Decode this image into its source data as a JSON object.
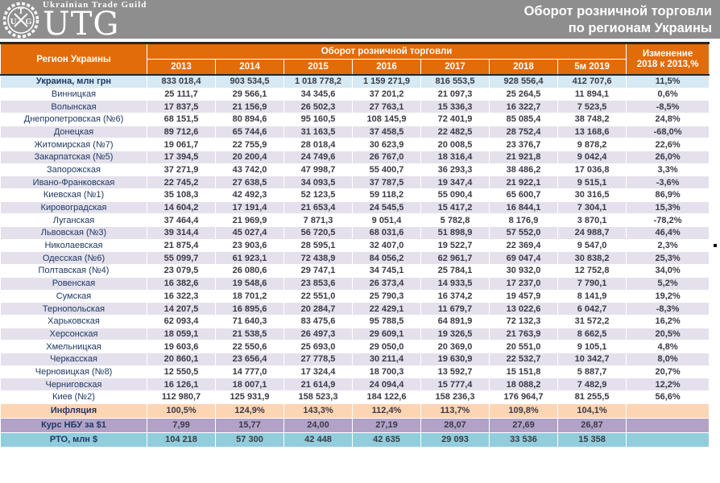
{
  "header": {
    "logo": {
      "top_text": "Ukrainian Trade Guild",
      "brand": "UTG",
      "seal_letters": {
        "left": "U",
        "top": "T",
        "right": "G"
      }
    },
    "title_line1": "Оборот розничной торговли",
    "title_line2": "по регионам Украины"
  },
  "colors": {
    "band_gray": "#8e8e8e",
    "header_orange": "#e26b0a",
    "ukraine_row_blue": "#d7e9f2",
    "stripe_lavender": "#e4e1ec",
    "inflation_peach": "#fcd5b4",
    "rate_purple": "#b2a2c7",
    "rto_teal": "#92cddc",
    "label_navy": "#1f3864"
  },
  "table": {
    "region_header": "Регион Украины",
    "group_header": "Оборот розничной торговли",
    "change_header_line1": "Изменение",
    "change_header_line2": "2018 к 2013,%",
    "year_headers": [
      "2013",
      "2014",
      "2015",
      "2016",
      "2017",
      "2018",
      "5м 2019"
    ],
    "ukraine_row": {
      "label": "Украина, млн грн",
      "values": [
        "833 018,4",
        "903 534,5",
        "1 018 778,2",
        "1 159 271,9",
        "816 553,5",
        "928 556,4",
        "412 707,6"
      ],
      "change": "11,5%"
    },
    "regions": [
      {
        "label": "Винницкая",
        "values": [
          "25 111,7",
          "29 566,1",
          "34 345,6",
          "37 201,2",
          "21 097,3",
          "25 264,5",
          "11 894,1"
        ],
        "change": "0,6%"
      },
      {
        "label": "Волынская",
        "values": [
          "17 837,5",
          "21 156,9",
          "26 502,3",
          "27 763,1",
          "15 336,3",
          "16 322,7",
          "7 523,5"
        ],
        "change": "-8,5%"
      },
      {
        "label": "Днепропетровская (№6)",
        "values": [
          "68 151,5",
          "80 894,6",
          "95 160,5",
          "108 145,9",
          "72 401,9",
          "85 085,4",
          "38 748,2"
        ],
        "change": "24,8%"
      },
      {
        "label": "Донецкая",
        "values": [
          "89 712,6",
          "65 744,6",
          "31 163,5",
          "37 458,5",
          "22 482,5",
          "28 752,4",
          "13 168,6"
        ],
        "change": "-68,0%"
      },
      {
        "label": "Житомирская (№7)",
        "values": [
          "19 061,7",
          "22 755,9",
          "28 018,4",
          "30 623,9",
          "20 008,5",
          "23 376,7",
          "9 878,2"
        ],
        "change": "22,6%"
      },
      {
        "label": "Закарпатская (№5)",
        "values": [
          "17 394,5",
          "20 200,4",
          "24 749,6",
          "26 767,0",
          "18 316,4",
          "21 921,8",
          "9 042,4"
        ],
        "change": "26,0%"
      },
      {
        "label": "Запорожская",
        "values": [
          "37 271,9",
          "43 742,0",
          "47 998,7",
          "55 400,7",
          "36 293,3",
          "38 486,2",
          "17 036,8"
        ],
        "change": "3,3%"
      },
      {
        "label": "Ивано-Франковская",
        "values": [
          "22 745,2",
          "27 638,5",
          "34 093,5",
          "37 787,5",
          "19 347,4",
          "21 922,1",
          "9 515,1"
        ],
        "change": "-3,6%"
      },
      {
        "label": "Киевская (№1)",
        "values": [
          "35 108,3",
          "42 492,3",
          "52 123,5",
          "59 118,2",
          "55 090,4",
          "65 600,7",
          "30 316,5"
        ],
        "change": "86,9%"
      },
      {
        "label": "Кировоградская",
        "values": [
          "14 604,2",
          "17 191,4",
          "21 653,4",
          "24 545,5",
          "15 417,2",
          "16 844,1",
          "7 304,1"
        ],
        "change": "15,3%"
      },
      {
        "label": "Луганская",
        "values": [
          "37 464,4",
          "21 969,9",
          "7 871,3",
          "9 051,4",
          "5 782,8",
          "8 176,9",
          "3 870,1"
        ],
        "change": "-78,2%"
      },
      {
        "label": "Львовская (№3)",
        "values": [
          "39 314,4",
          "45 027,4",
          "56 720,5",
          "68 031,6",
          "51 898,9",
          "57 552,0",
          "24 988,7"
        ],
        "change": "46,4%"
      },
      {
        "label": "Николаевская",
        "values": [
          "21 875,4",
          "23 903,6",
          "28 595,1",
          "32 407,0",
          "19 522,7",
          "22 369,4",
          "9 547,0"
        ],
        "change": "2,3%"
      },
      {
        "label": "Одесская (№6)",
        "values": [
          "55 099,7",
          "61 923,1",
          "72 438,9",
          "84 056,2",
          "62 961,7",
          "69 047,4",
          "30 838,2"
        ],
        "change": "25,3%"
      },
      {
        "label": "Полтавская (№4)",
        "values": [
          "23 079,5",
          "26 080,6",
          "29 747,1",
          "34 745,1",
          "25 784,1",
          "30 932,0",
          "12 752,8"
        ],
        "change": "34,0%"
      },
      {
        "label": "Ровенская",
        "values": [
          "16 382,6",
          "19 548,6",
          "23 853,6",
          "26 373,4",
          "14 933,5",
          "17 237,0",
          "7 790,1"
        ],
        "change": "5,2%"
      },
      {
        "label": "Сумская",
        "values": [
          "16 322,3",
          "18 701,2",
          "22 551,0",
          "25 790,3",
          "16 374,2",
          "19 457,9",
          "8 141,9"
        ],
        "change": "19,2%"
      },
      {
        "label": "Тернопольская",
        "values": [
          "14 207,5",
          "16 895,6",
          "20 284,7",
          "22 429,1",
          "11 679,7",
          "13 022,6",
          "6 042,7"
        ],
        "change": "-8,3%"
      },
      {
        "label": "Харьковская",
        "values": [
          "62 093,4",
          "71 640,3",
          "83 475,6",
          "95 788,5",
          "64 891,9",
          "72 132,3",
          "31 572,2"
        ],
        "change": "16,2%"
      },
      {
        "label": "Херсонская",
        "values": [
          "18 059,1",
          "21 538,5",
          "26 497,3",
          "29 609,1",
          "19 326,5",
          "21 763,9",
          "8 662,5"
        ],
        "change": "20,5%"
      },
      {
        "label": "Хмельницкая",
        "values": [
          "19 603,6",
          "22 550,6",
          "25 693,0",
          "29 050,0",
          "20 369,0",
          "20 551,0",
          "9 105,1"
        ],
        "change": "4,8%"
      },
      {
        "label": "Черкасская",
        "values": [
          "20 860,1",
          "23 656,4",
          "27 778,5",
          "30 211,4",
          "19 630,9",
          "22 532,7",
          "10 342,7"
        ],
        "change": "8,0%"
      },
      {
        "label": "Черновицкая (№8)",
        "values": [
          "12 550,5",
          "14 777,0",
          "17 324,4",
          "18 700,3",
          "13 592,7",
          "15 151,8",
          "5 887,7"
        ],
        "change": "20,7%"
      },
      {
        "label": "Черниговская",
        "values": [
          "16 126,1",
          "18 007,1",
          "21 614,9",
          "24 094,4",
          "15 777,4",
          "18 088,2",
          "7 482,9"
        ],
        "change": "12,2%"
      },
      {
        "label": "Киев (№2)",
        "values": [
          "112 980,7",
          "125 931,9",
          "158 523,3",
          "184 122,6",
          "158 236,3",
          "176 964,7",
          "81 255,5"
        ],
        "change": "56,6%"
      }
    ],
    "inflation_row": {
      "label": "Инфляция",
      "values": [
        "100,5%",
        "124,9%",
        "143,3%",
        "112,4%",
        "113,7%",
        "109,8%",
        "104,1%"
      ],
      "change": ""
    },
    "rate_row": {
      "label": "Курс НБУ за $1",
      "values": [
        "7,99",
        "15,77",
        "24,00",
        "27,19",
        "28,07",
        "27,69",
        "26,87"
      ],
      "change": ""
    },
    "rto_row": {
      "label": "РТО, млн $",
      "values": [
        "104 218",
        "57 300",
        "42 448",
        "42 635",
        "29 093",
        "33 536",
        "15 358"
      ],
      "change": ""
    }
  }
}
